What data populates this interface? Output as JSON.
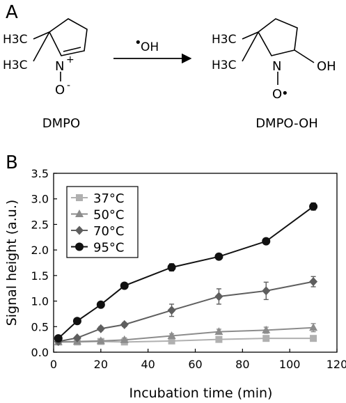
{
  "panel_a": {
    "label": "A",
    "reactant": {
      "name": "DMPO",
      "methyl_1": "H3C",
      "methyl_2": "H3C",
      "nitrogen": "N",
      "charge_plus": "+",
      "oxygen": "O",
      "charge_minus": "-"
    },
    "reagent": {
      "dot": "•",
      "text": "OH"
    },
    "product": {
      "name": "DMPO-OH",
      "methyl_1": "H3C",
      "methyl_2": "H3C",
      "nitrogen": "N",
      "hydroxyl": "OH",
      "oxygen": "O",
      "radical_dot": "•"
    }
  },
  "panel_b": {
    "label": "B"
  },
  "chart_data": {
    "type": "line",
    "xlabel": "Incubation time (min)",
    "ylabel": "Signal height (a.u.)",
    "xlim": [
      0,
      120
    ],
    "ylim": [
      0,
      3.5
    ],
    "xticks": [
      0,
      20,
      40,
      60,
      80,
      100,
      120
    ],
    "yticks": [
      0.0,
      0.5,
      1.0,
      1.5,
      2.0,
      2.5,
      3.0,
      3.5
    ],
    "ytick_labels": [
      "0.0",
      "0.5",
      "1.0",
      "1.5",
      "2.0",
      "2.5",
      "3.0",
      "3.5"
    ],
    "grid": false,
    "legend_position": "top-left",
    "series": [
      {
        "name": "37°C",
        "color": "#b0b0b0",
        "marker": "square",
        "points": [
          [
            2,
            0.2
          ],
          [
            10,
            0.2
          ],
          [
            20,
            0.21
          ],
          [
            30,
            0.2
          ],
          [
            50,
            0.22
          ],
          [
            70,
            0.25
          ],
          [
            90,
            0.27
          ],
          [
            110,
            0.27
          ]
        ],
        "errors": [
          0.02,
          0.02,
          0.02,
          0.02,
          0.03,
          0.03,
          0.04,
          0.04
        ]
      },
      {
        "name": "50°C",
        "color": "#8c8c8c",
        "marker": "triangle",
        "points": [
          [
            2,
            0.2
          ],
          [
            10,
            0.21
          ],
          [
            20,
            0.22
          ],
          [
            30,
            0.24
          ],
          [
            50,
            0.32
          ],
          [
            70,
            0.4
          ],
          [
            90,
            0.43
          ],
          [
            110,
            0.48
          ]
        ],
        "errors": [
          0.02,
          0.02,
          0.03,
          0.04,
          0.04,
          0.05,
          0.06,
          0.08
        ]
      },
      {
        "name": "70°C",
        "color": "#5e5e5e",
        "marker": "diamond",
        "points": [
          [
            2,
            0.21
          ],
          [
            10,
            0.28
          ],
          [
            20,
            0.46
          ],
          [
            30,
            0.54
          ],
          [
            50,
            0.82
          ],
          [
            70,
            1.09
          ],
          [
            90,
            1.2
          ],
          [
            110,
            1.38
          ]
        ],
        "errors": [
          0.02,
          0.03,
          0.04,
          0.04,
          0.12,
          0.15,
          0.17,
          0.1
        ]
      },
      {
        "name": "95°C",
        "color": "#111111",
        "marker": "circle",
        "points": [
          [
            2,
            0.27
          ],
          [
            10,
            0.61
          ],
          [
            20,
            0.93
          ],
          [
            30,
            1.3
          ],
          [
            50,
            1.66
          ],
          [
            70,
            1.87
          ],
          [
            90,
            2.17
          ],
          [
            110,
            2.85
          ]
        ],
        "errors": [
          0.03,
          0.03,
          0.04,
          0.04,
          0.07,
          0.06,
          0.03,
          0.07
        ]
      }
    ]
  }
}
